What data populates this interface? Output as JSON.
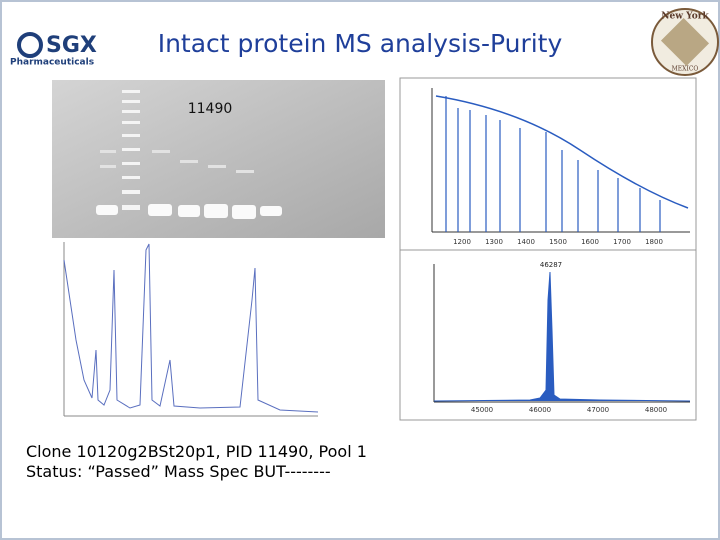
{
  "header": {
    "logo": "SGX",
    "logo_subtitle": "Pharmaceuticals",
    "title": "Intact protein MS analysis-Purity",
    "emblem_top": "New York",
    "emblem_bottom": "MEXICO"
  },
  "gel": {
    "label": "11490"
  },
  "spectrum_top": {
    "x_ticks": [
      "1200",
      "1300",
      "1400",
      "1500",
      "1600",
      "1700",
      "1800"
    ]
  },
  "spectrum_bottom": {
    "peak": "46287",
    "x_ticks": [
      "45000",
      "46000",
      "47000",
      "48000"
    ]
  },
  "caption": {
    "line1": "Clone 10120g2BSt20p1, PID 11490, Pool 1",
    "line2": "Status: “Passed” Mass Spec BUT--------"
  }
}
